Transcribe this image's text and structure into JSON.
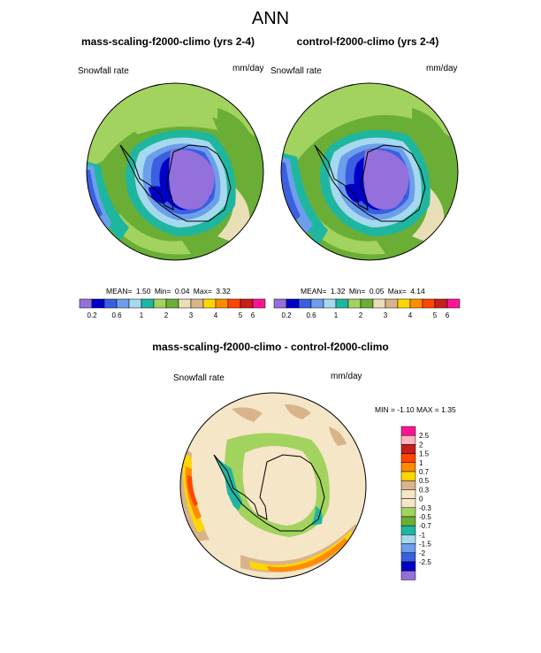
{
  "title": "ANN",
  "panels": [
    {
      "title": "mass-scaling-f2000-climo (yrs 2-4)",
      "left_label": "Snowfall rate",
      "right_label": "mm/day",
      "stats": {
        "mean_label": "MEAN=",
        "mean": "1.50",
        "min_label": "Min=",
        "min": "0.04",
        "max_label": "Max=",
        "max": "3.32"
      }
    },
    {
      "title": "control-f2000-climo (yrs 2-4)",
      "left_label": "Snowfall rate",
      "right_label": "mm/day",
      "stats": {
        "mean_label": "MEAN=",
        "mean": "1.32",
        "min_label": "Min=",
        "min": "0.05",
        "max_label": "Max=",
        "max": "4.14"
      }
    }
  ],
  "diff_panel": {
    "title": "mass-scaling-f2000-climo - control-f2000-climo",
    "left_label": "Snowfall rate",
    "right_label": "mm/day",
    "stats": {
      "min_label": "MIN =",
      "min": "-1.10",
      "max_label": "MAX =",
      "max": "1.35"
    }
  },
  "colorbar_abs": {
    "colors": [
      "#9370db",
      "#0000c8",
      "#3a5fe0",
      "#6d9eeb",
      "#a6d9ee",
      "#1fb6a0",
      "#a2d35e",
      "#6aae36",
      "#e9dfb7",
      "#d9b48b",
      "#ffd700",
      "#ff8c00",
      "#ff4500",
      "#c81e1e",
      "#ff1493"
    ],
    "tick_labels": [
      "0.2",
      "0.6",
      "1",
      "2",
      "3",
      "4",
      "5",
      "6"
    ]
  },
  "colorbar_diff": {
    "colors": [
      "#ff1493",
      "#ffb6c1",
      "#c81e1e",
      "#ff4500",
      "#ff8c00",
      "#ffd700",
      "#d9b48b",
      "#f5e6c8",
      "#f5e6c8",
      "#a2d35e",
      "#6aae36",
      "#1fb6a0",
      "#a6d9ee",
      "#6d9eeb",
      "#3a5fe0",
      "#0000c8",
      "#9370db"
    ],
    "tick_labels": [
      "2.5",
      "2",
      "1.5",
      "1",
      "0.7",
      "0.5",
      "0.3",
      "0",
      "-0.3",
      "-0.5",
      "-0.7",
      "-1",
      "-1.5",
      "-2",
      "-2.5"
    ]
  }
}
